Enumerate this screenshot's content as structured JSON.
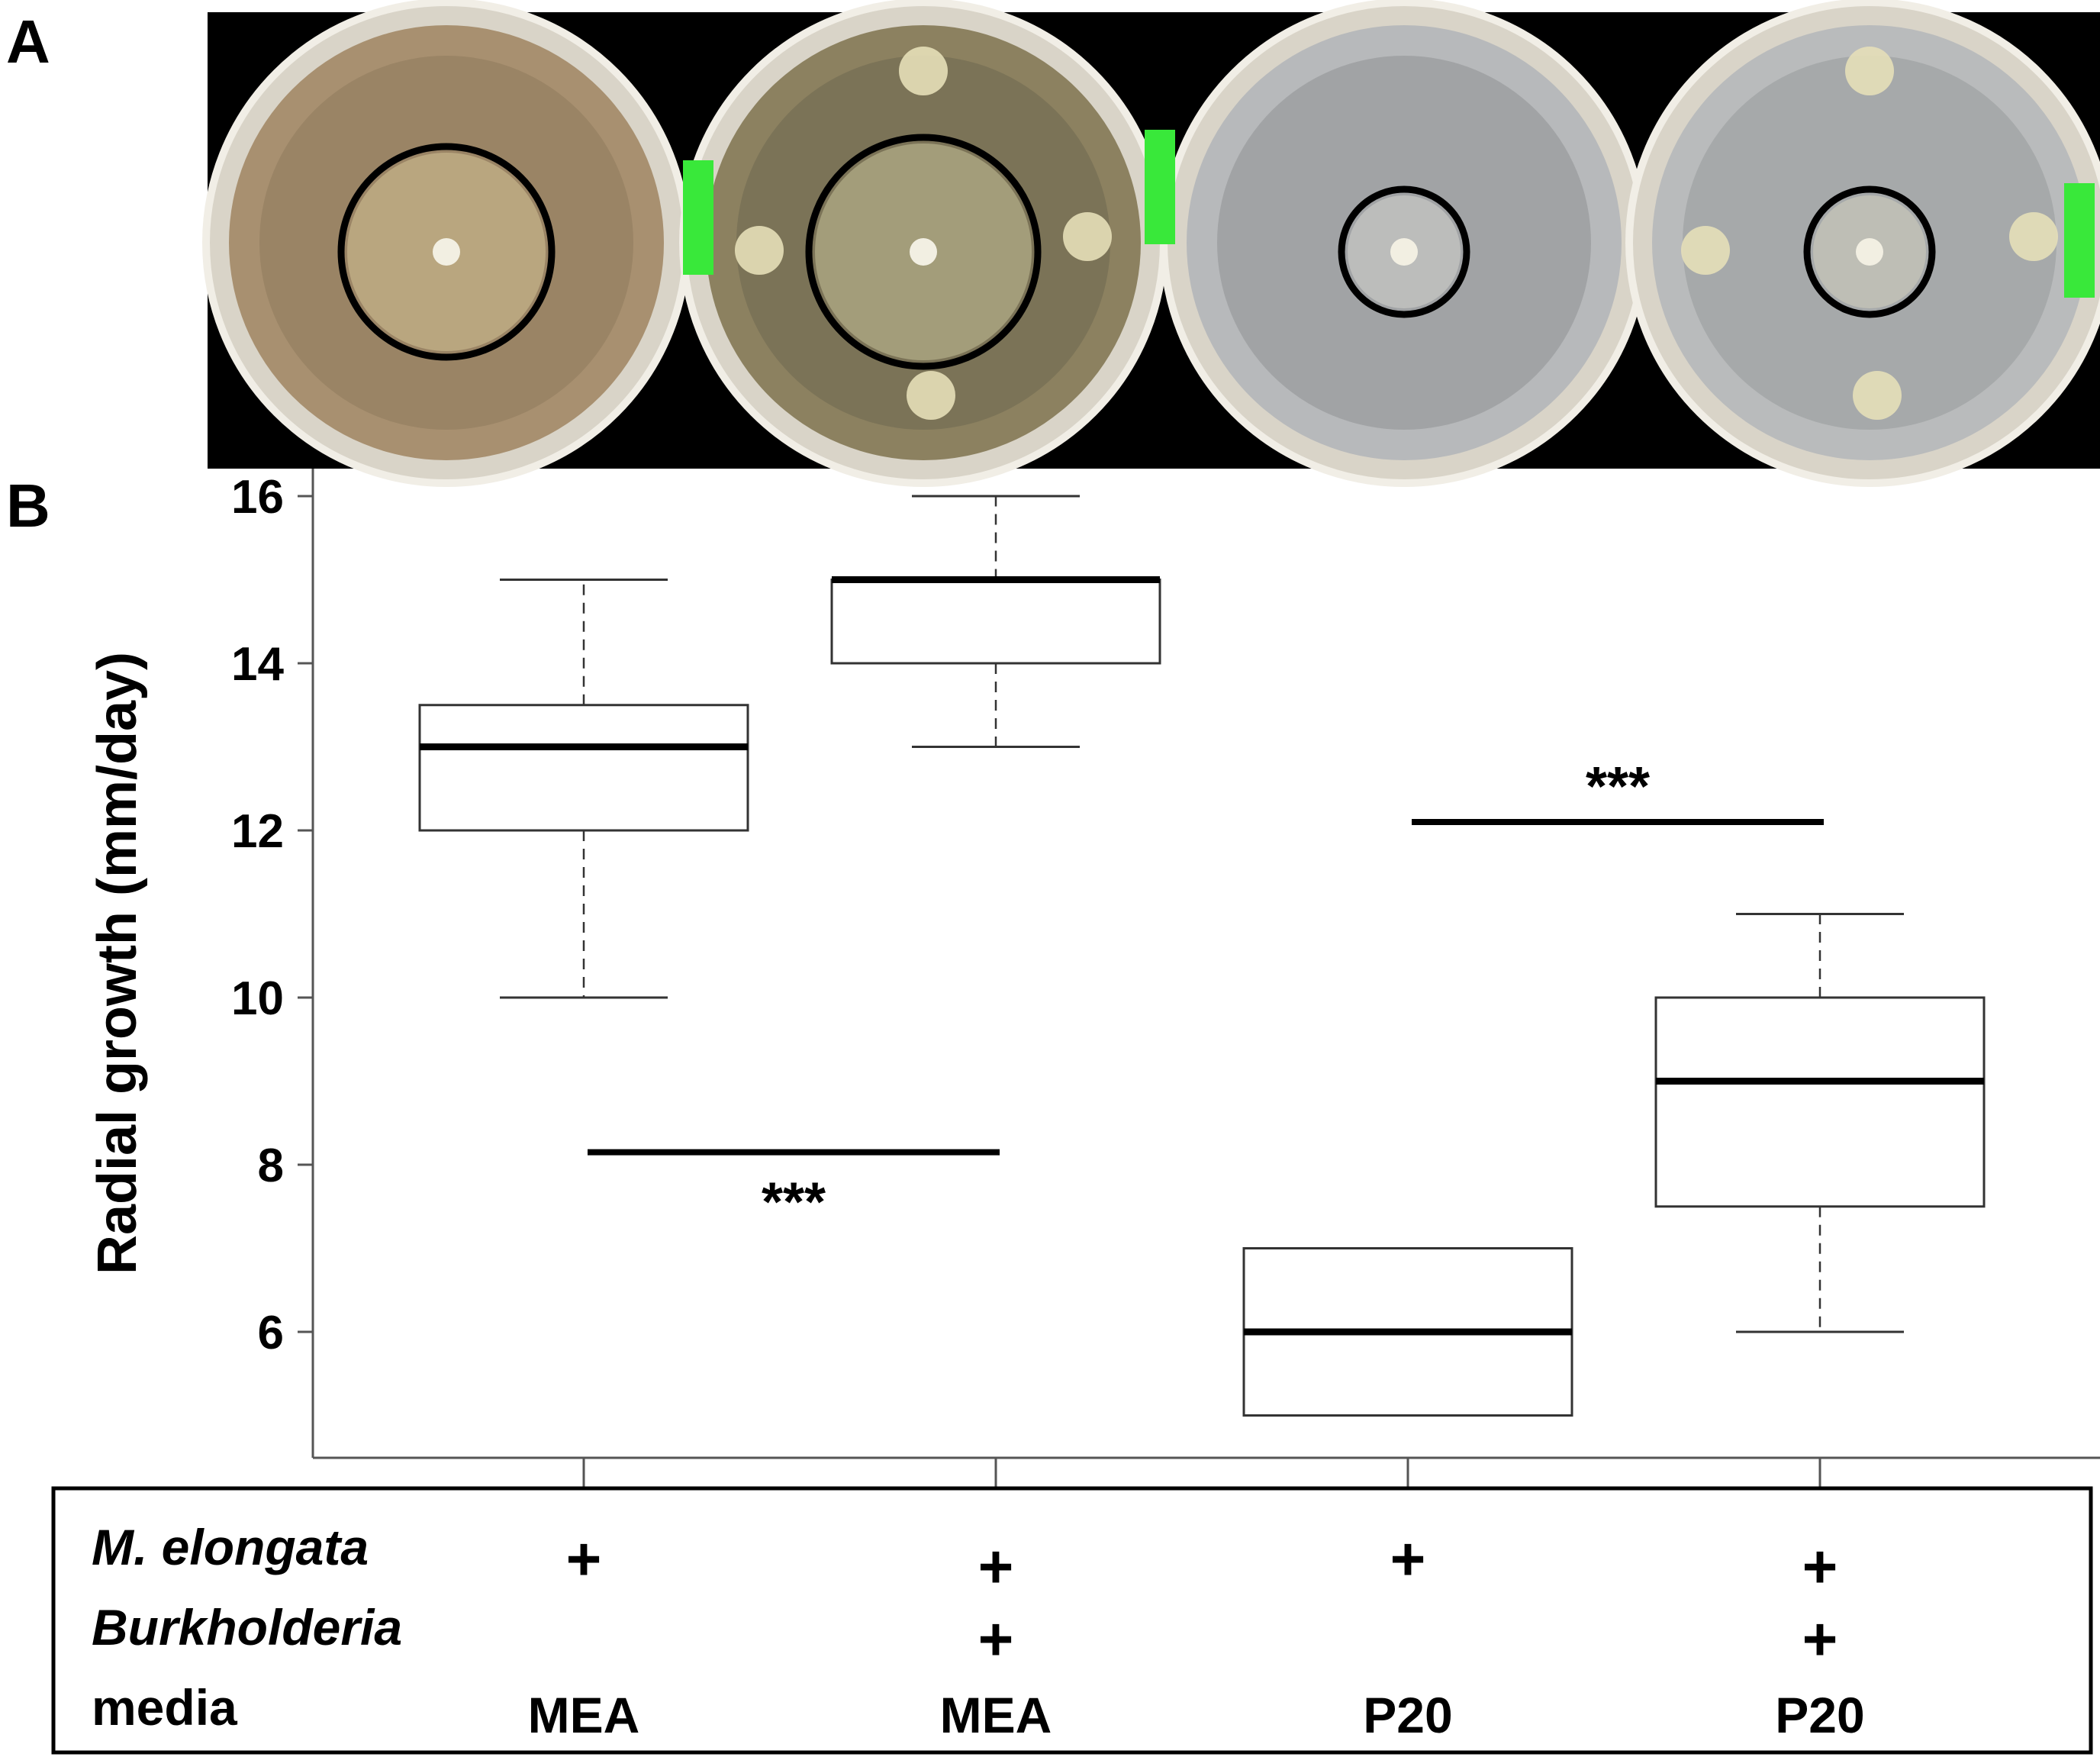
{
  "panel_labels": {
    "a": "A",
    "b": "B"
  },
  "photo": {
    "plates": [
      {
        "agar": "#a89070",
        "agar_inner": "#8e7a5c",
        "colony": "#c9b88e",
        "ring": "large",
        "satellites": 0,
        "label_text": ""
      },
      {
        "agar": "#8c8160",
        "agar_inner": "#6e6850",
        "colony": "#b8b48e",
        "ring": "large",
        "satellites": 4,
        "label_text": ""
      },
      {
        "agar": "#b7b9bb",
        "agar_inner": "#8f9193",
        "colony": "#d8d8d2",
        "ring": "small",
        "satellites": 0,
        "label_text": ""
      },
      {
        "agar": "#b9bbbc",
        "agar_inner": "#989a9b",
        "colony": "#d6d3bf",
        "ring": "small",
        "satellites": 4,
        "label_text": ""
      }
    ],
    "tape_color": "#39e83a",
    "background": "#000000"
  },
  "chart_data": {
    "type": "box",
    "ylabel": "Radial growth (mm/day)",
    "yticks": [
      6,
      8,
      10,
      12,
      14,
      16
    ],
    "ylim": [
      4.2,
      16.4
    ],
    "groups": [
      {
        "whisker_low": 10,
        "q1": 12,
        "median": 13,
        "q3": 13.5,
        "whisker_high": 15
      },
      {
        "whisker_low": 13,
        "q1": 14,
        "median": 15,
        "q3": 15,
        "whisker_high": 16
      },
      {
        "whisker_low": 5,
        "q1": 5,
        "median": 6,
        "q3": 7,
        "whisker_high": 7
      },
      {
        "whisker_low": 6,
        "q1": 7.5,
        "median": 9,
        "q3": 10,
        "whisker_high": 11
      }
    ],
    "significance": [
      {
        "from_group": 0,
        "to_group": 1,
        "y": 8.15,
        "label": "***",
        "label_position": "below"
      },
      {
        "from_group": 2,
        "to_group": 3,
        "y": 12.1,
        "label": "***",
        "label_position": "above"
      }
    ]
  },
  "table": {
    "rows": [
      {
        "label": "M. elongata",
        "italic": true,
        "cells": [
          "+",
          "+",
          "+",
          "+"
        ]
      },
      {
        "label": "Burkholderia",
        "italic": true,
        "cells": [
          "",
          "+",
          "",
          "+"
        ]
      },
      {
        "label": "media",
        "italic": false,
        "cells": [
          "MEA",
          "MEA",
          "P20",
          "P20"
        ]
      }
    ]
  }
}
